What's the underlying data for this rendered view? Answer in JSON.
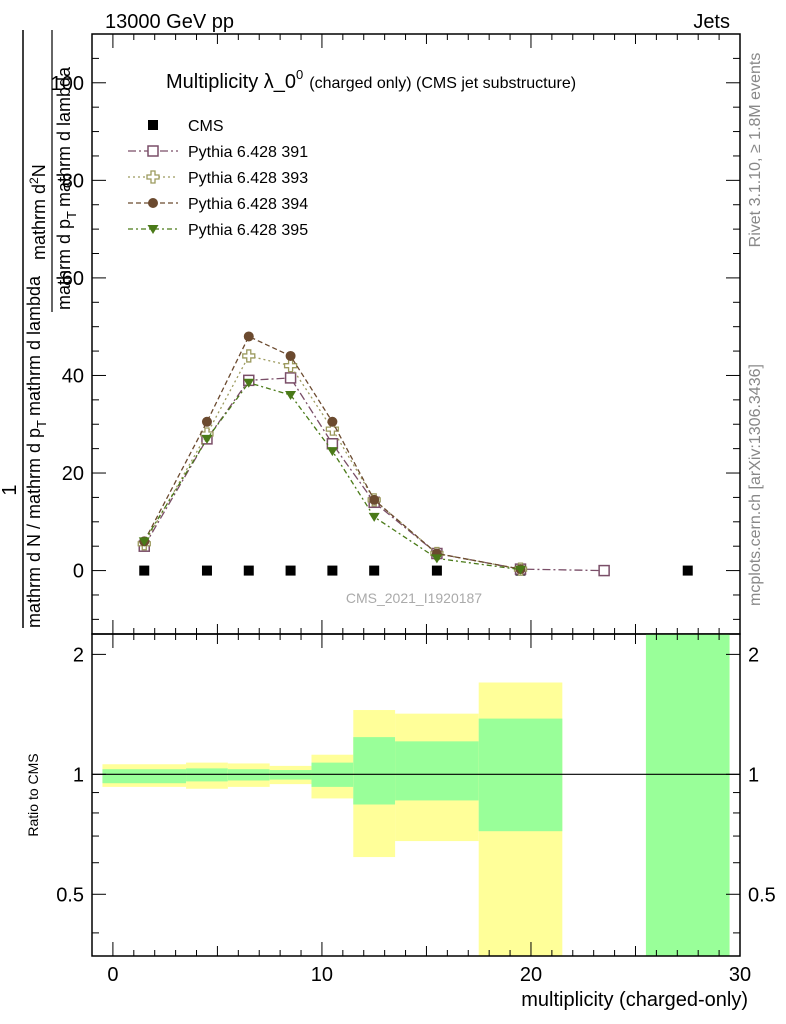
{
  "header": {
    "beam": "13000 GeV pp",
    "process": "Jets"
  },
  "side_labels": {
    "rivet": "Rivet 3.1.10, ≥ 1.8M events",
    "mcplots": "mcplots.cern.ch [arXiv:1306.3436]"
  },
  "watermark": "CMS_2021_I1920187",
  "colors": {
    "cms": "#000000",
    "p391": "#7a4e68",
    "p393": "#9c9a5e",
    "p394": "#6b4a2f",
    "p395": "#4a7a18",
    "band_inner": "#99ff99",
    "band_outer": "#ffff99"
  },
  "chart_data": [
    {
      "type": "scatter",
      "title_main": "Multiplicity λ_0",
      "title_sup": "0",
      "title_note": "(charged only) (CMS jet substructure)",
      "ylabel": {
        "fraction_numerator": "1",
        "fraction_denominator": "mathrm d N / mathrm d p",
        "fraction_denominator_sub": "T",
        "fraction_denominator_tail": "mathrm d lambda",
        "derivative_numerator": "mathrm d",
        "derivative_numerator_sup": "2",
        "derivative_numerator_tail": "N",
        "derivative_denominator": "mathrm d p",
        "derivative_denominator_sub": "T",
        "derivative_denominator_tail": "mathrm d lambda"
      },
      "xlim": [
        -1,
        30
      ],
      "ylim": [
        -13,
        110
      ],
      "yticks": [
        0,
        20,
        40,
        60,
        80,
        100
      ],
      "legend_position": "top-left",
      "series": [
        {
          "name": "CMS",
          "key": "cms",
          "marker": "square-filled",
          "x": [
            1.5,
            4.5,
            6.5,
            8.5,
            10.5,
            12.5,
            15.5,
            19.5,
            23.5,
            27.5
          ],
          "y": [
            0,
            0,
            0,
            0,
            0,
            0,
            0,
            0,
            0,
            0
          ]
        },
        {
          "name": "Pythia 6.428 391",
          "key": "p391",
          "marker": "square-open",
          "dash": "8,3,2,3",
          "x": [
            1.5,
            4.5,
            6.5,
            8.5,
            10.5,
            12.5,
            15.5,
            19.5,
            23.5
          ],
          "y": [
            5,
            27,
            39,
            39.5,
            26,
            14,
            3.5,
            0.3,
            0
          ]
        },
        {
          "name": "Pythia 6.428 393",
          "key": "p393",
          "marker": "cross-open",
          "dash": "2,3",
          "x": [
            1.5,
            4.5,
            6.5,
            8.5,
            10.5,
            12.5,
            15.5,
            19.5
          ],
          "y": [
            5.5,
            28,
            44,
            42,
            29,
            14.5,
            3.5,
            0.3
          ]
        },
        {
          "name": "Pythia 6.428 394",
          "key": "p394",
          "marker": "circle-filled",
          "dash": "5,3",
          "x": [
            1.5,
            4.5,
            6.5,
            8.5,
            10.5,
            12.5,
            15.5,
            19.5
          ],
          "y": [
            6,
            30.5,
            48,
            44,
            30.5,
            14.5,
            3.5,
            0.3
          ]
        },
        {
          "name": "Pythia 6.428 395",
          "key": "p395",
          "marker": "triangle-down-filled",
          "dash": "5,3,2,3",
          "x": [
            1.5,
            4.5,
            6.5,
            8.5,
            10.5,
            12.5,
            15.5,
            19.5
          ],
          "y": [
            6,
            27,
            38.5,
            36,
            24.5,
            11,
            2.5,
            0.2
          ]
        }
      ]
    },
    {
      "type": "area",
      "ylabel": "Ratio to CMS",
      "xlabel": "multiplicity (charged-only)",
      "xlim": [
        -1,
        30
      ],
      "ylim": [
        0.35,
        2.25
      ],
      "ytick_labels": [
        "0.5",
        "1",
        "2"
      ],
      "ytick_values": [
        0.5,
        1,
        2
      ],
      "xtick_labels": [
        "0",
        "10",
        "20",
        "30"
      ],
      "xtick_values": [
        0,
        10,
        20,
        30
      ],
      "reference_line": 1,
      "bins": [
        {
          "x0": -0.5,
          "x1": 3.5,
          "inner": [
            0.95,
            1.03
          ],
          "outer": [
            0.93,
            1.06
          ]
        },
        {
          "x0": 3.5,
          "x1": 5.5,
          "inner": [
            0.96,
            1.035
          ],
          "outer": [
            0.92,
            1.07
          ]
        },
        {
          "x0": 5.5,
          "x1": 7.5,
          "inner": [
            0.965,
            1.03
          ],
          "outer": [
            0.93,
            1.065
          ]
        },
        {
          "x0": 7.5,
          "x1": 9.5,
          "inner": [
            0.97,
            1.025
          ],
          "outer": [
            0.945,
            1.05
          ]
        },
        {
          "x0": 9.5,
          "x1": 11.5,
          "inner": [
            0.93,
            1.07
          ],
          "outer": [
            0.87,
            1.12
          ]
        },
        {
          "x0": 11.5,
          "x1": 13.5,
          "inner": [
            0.84,
            1.24
          ],
          "outer": [
            0.62,
            1.45
          ]
        },
        {
          "x0": 13.5,
          "x1": 17.5,
          "inner": [
            0.86,
            1.21
          ],
          "outer": [
            0.68,
            1.42
          ]
        },
        {
          "x0": 17.5,
          "x1": 21.5,
          "inner": [
            0.72,
            1.38
          ],
          "outer": [
            0.35,
            1.7
          ]
        },
        {
          "x0": 25.5,
          "x1": 29.5,
          "inner": [
            0.35,
            2.25
          ],
          "outer": [
            0.35,
            2.25
          ]
        }
      ]
    }
  ]
}
